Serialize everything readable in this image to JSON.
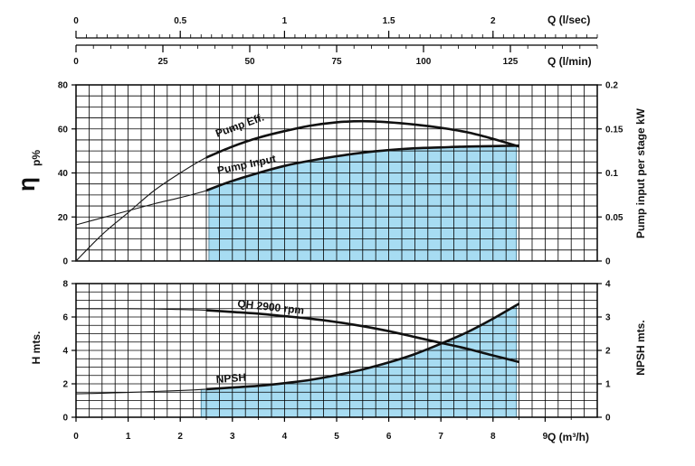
{
  "chart_data": [
    {
      "type": "line",
      "panel": "efficiency-power",
      "top_axes": [
        {
          "label": "Q (l/sec)",
          "ticks": [
            "0",
            "0.5",
            "1",
            "1.5",
            "2"
          ],
          "range": [
            0,
            2.5
          ]
        },
        {
          "label": "Q (l/min)",
          "ticks": [
            "0",
            "25",
            "50",
            "75",
            "100",
            "125"
          ],
          "range": [
            0,
            150
          ]
        }
      ],
      "ylabel_left": "η",
      "ylabel_left_sub": "p%",
      "ylabel_right": "Pump input per stage kW",
      "ylim_left": [
        0,
        80
      ],
      "ylim_right": [
        0,
        0.2
      ],
      "yticks_left": [
        "0",
        "20",
        "40",
        "60",
        "80"
      ],
      "yticks_right": [
        "0",
        "0.05",
        "0.1",
        "0.15",
        "0.2"
      ],
      "xlim": [
        0,
        10
      ],
      "grid": true,
      "operating_range": [
        2.55,
        8.45
      ],
      "series": [
        {
          "name": "Pump Eff.",
          "axis": "left",
          "x": [
            0,
            0.5,
            1,
            1.5,
            2,
            2.5,
            3,
            3.5,
            4,
            4.5,
            5,
            5.5,
            6,
            6.5,
            7,
            7.5,
            8,
            8.5
          ],
          "y": [
            0,
            12,
            22,
            32,
            40,
            47,
            52,
            56,
            59,
            61.5,
            63,
            63.5,
            63,
            62,
            60.5,
            58.5,
            55.5,
            52
          ]
        },
        {
          "name": "Pump Input",
          "axis": "right",
          "x": [
            0,
            0.5,
            1,
            1.5,
            2,
            2.5,
            3,
            3.5,
            4,
            4.5,
            5,
            5.5,
            6,
            6.5,
            7,
            7.5,
            8,
            8.5
          ],
          "y": [
            0.041,
            0.049,
            0.057,
            0.065,
            0.072,
            0.08,
            0.091,
            0.1,
            0.108,
            0.114,
            0.119,
            0.123,
            0.126,
            0.128,
            0.129,
            0.13,
            0.1305,
            0.131
          ]
        }
      ]
    },
    {
      "type": "line",
      "panel": "head-npsh",
      "xlabel": "Q (m³/h)",
      "ylabel_left": "H mts.",
      "ylabel_right": "NPSH mts.",
      "xlim": [
        0,
        10
      ],
      "xticks": [
        "0",
        "1",
        "2",
        "3",
        "4",
        "5",
        "6",
        "7",
        "8",
        "9"
      ],
      "ylim_left": [
        0,
        8
      ],
      "ylim_right": [
        0,
        4
      ],
      "yticks_left": [
        "0",
        "2",
        "4",
        "6",
        "8"
      ],
      "yticks_right": [
        "0",
        "1",
        "2",
        "3",
        "4"
      ],
      "grid": true,
      "operating_range": [
        2.4,
        8.45
      ],
      "series": [
        {
          "name": "QH 2900 rpm",
          "axis": "left",
          "x": [
            0,
            0.5,
            1,
            1.5,
            2,
            2.5,
            3,
            3.5,
            4,
            4.5,
            5,
            5.5,
            6,
            6.5,
            7,
            7.5,
            8,
            8.5
          ],
          "y": [
            6.5,
            6.5,
            6.5,
            6.48,
            6.45,
            6.4,
            6.3,
            6.2,
            6.05,
            5.9,
            5.7,
            5.45,
            5.15,
            4.8,
            4.45,
            4.1,
            3.7,
            3.3
          ]
        },
        {
          "name": "NPSH",
          "axis": "right",
          "x": [
            0,
            0.5,
            1,
            1.5,
            2,
            2.5,
            3,
            3.5,
            4,
            4.5,
            5,
            5.5,
            6,
            6.5,
            7,
            7.5,
            8,
            8.5
          ],
          "y": [
            0.7,
            0.72,
            0.74,
            0.77,
            0.8,
            0.84,
            0.89,
            0.94,
            1.02,
            1.12,
            1.26,
            1.43,
            1.64,
            1.89,
            2.2,
            2.54,
            2.95,
            3.4
          ]
        }
      ]
    }
  ]
}
